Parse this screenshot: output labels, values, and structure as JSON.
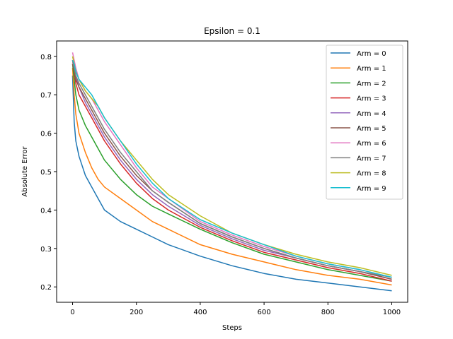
{
  "chart_data": {
    "type": "line",
    "title": "Epsilon = 0.1",
    "xlabel": "Steps",
    "ylabel": "Absolute Error",
    "xlim": [
      -50,
      1050
    ],
    "ylim": [
      0.16,
      0.84
    ],
    "xticks": [
      0,
      200,
      400,
      600,
      800,
      1000
    ],
    "yticks": [
      0.2,
      0.3,
      0.4,
      0.5,
      0.6,
      0.7,
      0.8
    ],
    "grid": false,
    "legend_position": "top-right",
    "x": [
      0,
      5,
      10,
      20,
      40,
      60,
      80,
      100,
      150,
      200,
      250,
      300,
      400,
      500,
      600,
      700,
      800,
      900,
      1000
    ],
    "series": [
      {
        "name": "Arm = 0",
        "color": "#1f77b4",
        "values": [
          0.75,
          0.63,
          0.58,
          0.54,
          0.49,
          0.46,
          0.43,
          0.4,
          0.37,
          0.35,
          0.33,
          0.31,
          0.28,
          0.255,
          0.235,
          0.22,
          0.21,
          0.2,
          0.19
        ]
      },
      {
        "name": "Arm = 1",
        "color": "#ff7f0e",
        "values": [
          0.77,
          0.7,
          0.65,
          0.6,
          0.55,
          0.51,
          0.48,
          0.46,
          0.43,
          0.4,
          0.37,
          0.35,
          0.31,
          0.285,
          0.265,
          0.245,
          0.23,
          0.22,
          0.205
        ]
      },
      {
        "name": "Arm = 2",
        "color": "#2ca02c",
        "values": [
          0.78,
          0.74,
          0.7,
          0.66,
          0.62,
          0.59,
          0.56,
          0.53,
          0.48,
          0.44,
          0.41,
          0.39,
          0.35,
          0.315,
          0.285,
          0.265,
          0.245,
          0.23,
          0.215
        ]
      },
      {
        "name": "Arm = 3",
        "color": "#d62728",
        "values": [
          0.79,
          0.76,
          0.73,
          0.7,
          0.67,
          0.64,
          0.61,
          0.58,
          0.52,
          0.47,
          0.43,
          0.4,
          0.355,
          0.32,
          0.29,
          0.27,
          0.25,
          0.235,
          0.215
        ]
      },
      {
        "name": "Arm = 4",
        "color": "#9467bd",
        "values": [
          0.79,
          0.77,
          0.75,
          0.72,
          0.68,
          0.65,
          0.62,
          0.59,
          0.53,
          0.48,
          0.44,
          0.41,
          0.36,
          0.325,
          0.295,
          0.275,
          0.255,
          0.24,
          0.22
        ]
      },
      {
        "name": "Arm = 5",
        "color": "#8c564b",
        "values": [
          0.78,
          0.76,
          0.74,
          0.72,
          0.69,
          0.66,
          0.63,
          0.6,
          0.54,
          0.49,
          0.45,
          0.42,
          0.365,
          0.33,
          0.3,
          0.275,
          0.255,
          0.24,
          0.22
        ]
      },
      {
        "name": "Arm = 6",
        "color": "#e377c2",
        "values": [
          0.81,
          0.79,
          0.77,
          0.74,
          0.71,
          0.69,
          0.66,
          0.63,
          0.57,
          0.51,
          0.46,
          0.43,
          0.37,
          0.335,
          0.305,
          0.28,
          0.26,
          0.245,
          0.225
        ]
      },
      {
        "name": "Arm = 7",
        "color": "#7f7f7f",
        "values": [
          0.79,
          0.77,
          0.75,
          0.73,
          0.7,
          0.67,
          0.64,
          0.61,
          0.55,
          0.5,
          0.45,
          0.42,
          0.365,
          0.33,
          0.3,
          0.275,
          0.255,
          0.24,
          0.225
        ]
      },
      {
        "name": "Arm = 8",
        "color": "#bcbd22",
        "values": [
          0.8,
          0.78,
          0.76,
          0.74,
          0.71,
          0.69,
          0.67,
          0.64,
          0.58,
          0.53,
          0.48,
          0.44,
          0.385,
          0.34,
          0.31,
          0.285,
          0.265,
          0.25,
          0.23
        ]
      },
      {
        "name": "Arm = 9",
        "color": "#17becf",
        "values": [
          0.79,
          0.78,
          0.76,
          0.74,
          0.72,
          0.7,
          0.67,
          0.64,
          0.58,
          0.52,
          0.47,
          0.43,
          0.375,
          0.34,
          0.31,
          0.28,
          0.26,
          0.245,
          0.225
        ]
      }
    ]
  }
}
